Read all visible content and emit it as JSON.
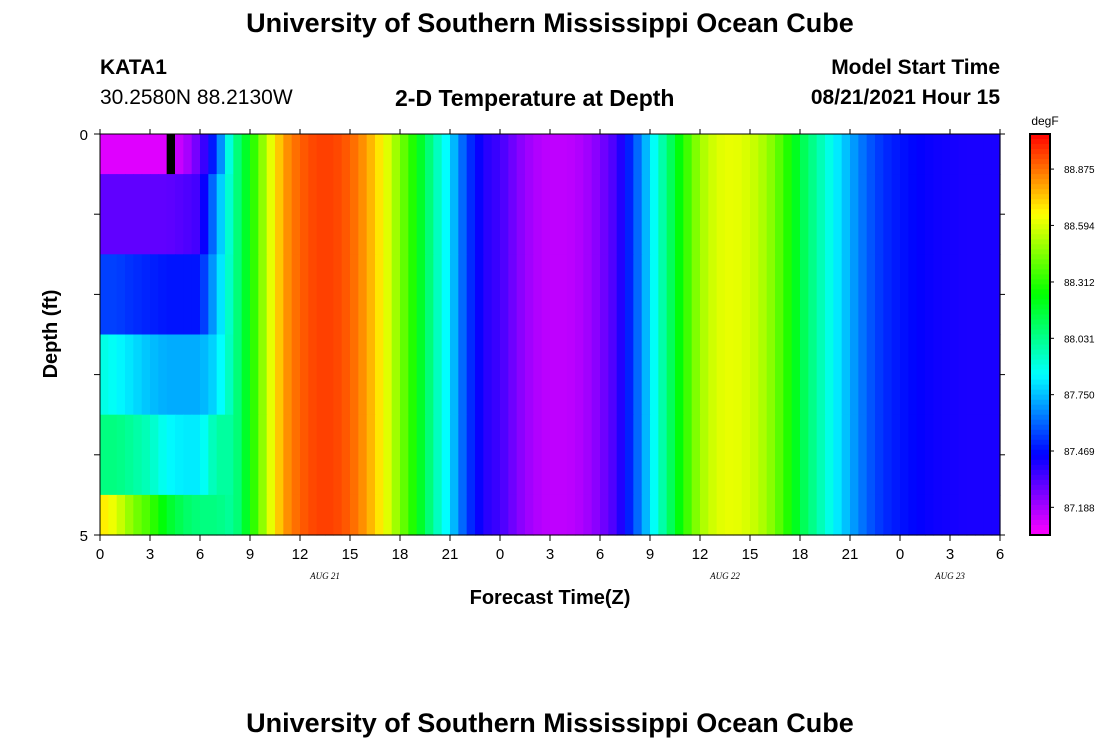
{
  "header": {
    "title": "University of Southern Mississippi Ocean Cube",
    "station_id": "KATA1",
    "station_coords": "30.2580N  88.2130W",
    "plot_title": "2-D Temperature at Depth",
    "model_label": "Model Start Time",
    "model_time": "08/21/2021 Hour 15"
  },
  "footer": {
    "title": "University of Southern Mississippi Ocean Cube"
  },
  "chart_data": {
    "type": "heatmap",
    "title": "2-D Temperature at Depth",
    "xlabel": "Forecast Time(Z)",
    "ylabel": "Depth (ft)",
    "x_hours_from_start": [
      0,
      54
    ],
    "x_tick_labels": [
      "0",
      "3",
      "6",
      "9",
      "12",
      "15",
      "18",
      "21",
      "0",
      "3",
      "6",
      "9",
      "12",
      "15",
      "18",
      "21",
      "0",
      "3",
      "6"
    ],
    "date_labels": [
      "AUG 21",
      "AUG 22",
      "AUG 23"
    ],
    "y_range_ft": [
      0,
      5
    ],
    "y_tick_labels": [
      "0",
      "5"
    ],
    "depth_layer_edges_ft": [
      0,
      0.5,
      1.5,
      2.5,
      3.5,
      4.5,
      5
    ],
    "colorbar": {
      "unit": "degF",
      "range": [
        87.05,
        89.05
      ],
      "tick_labels": [
        "88.875",
        "88.594",
        "88.312",
        "88.031",
        "87.750",
        "87.469",
        "87.188"
      ]
    },
    "profile_hours": [
      0,
      1,
      2,
      3,
      4,
      5,
      6,
      7,
      7.5,
      8,
      9,
      10,
      11,
      12,
      13,
      14,
      15,
      16,
      17,
      18,
      19,
      20,
      21,
      22,
      23,
      24,
      25,
      26,
      27,
      28,
      29,
      30,
      31,
      32,
      33,
      34,
      35,
      36,
      37,
      38,
      39,
      40,
      41,
      42,
      43,
      44,
      45,
      46,
      47,
      48,
      49,
      50,
      51,
      52,
      53,
      54
    ],
    "profile_temps_degF": [
      87.1,
      87.1,
      87.1,
      87.1,
      87.1,
      87.15,
      87.3,
      87.55,
      87.8,
      88.0,
      88.25,
      88.55,
      88.8,
      88.9,
      88.95,
      88.95,
      88.9,
      88.8,
      88.65,
      88.45,
      88.25,
      88.0,
      87.8,
      87.55,
      87.4,
      87.35,
      87.25,
      87.18,
      87.15,
      87.15,
      87.18,
      87.25,
      87.35,
      87.55,
      87.8,
      88.05,
      88.3,
      88.5,
      88.6,
      88.62,
      88.58,
      88.5,
      88.35,
      88.15,
      88.0,
      87.85,
      87.72,
      87.6,
      87.52,
      87.48,
      87.45,
      87.43,
      87.42,
      87.41,
      87.41,
      87.41
    ],
    "early_layer_temps_degF": [
      {
        "depth_ft": 0.25,
        "temps_h0_to_h7": [
          87.1,
          87.1,
          87.1,
          87.1,
          87.1,
          87.15,
          87.3,
          87.55
        ]
      },
      {
        "depth_ft": 1.0,
        "temps_h0_to_h7": [
          87.3,
          87.3,
          87.3,
          87.3,
          87.3,
          87.32,
          87.35,
          87.7
        ]
      },
      {
        "depth_ft": 2.0,
        "temps_h0_to_h7": [
          87.55,
          87.55,
          87.52,
          87.5,
          87.48,
          87.48,
          87.48,
          87.75
        ]
      },
      {
        "depth_ft": 3.0,
        "temps_h0_to_h7": [
          87.9,
          87.85,
          87.8,
          87.75,
          87.72,
          87.72,
          87.72,
          87.8
        ]
      },
      {
        "depth_ft": 4.0,
        "temps_h0_to_h7": [
          88.05,
          88.05,
          88.0,
          87.95,
          87.85,
          87.82,
          87.82,
          88.0
        ]
      },
      {
        "depth_ft": 4.75,
        "temps_h0_to_h7": [
          88.7,
          88.6,
          88.45,
          88.35,
          88.2,
          88.1,
          88.05,
          88.05
        ]
      }
    ],
    "missing_data": [
      {
        "hours": [
          4,
          4.5
        ],
        "depth_ft": [
          0,
          0.5
        ]
      }
    ]
  }
}
